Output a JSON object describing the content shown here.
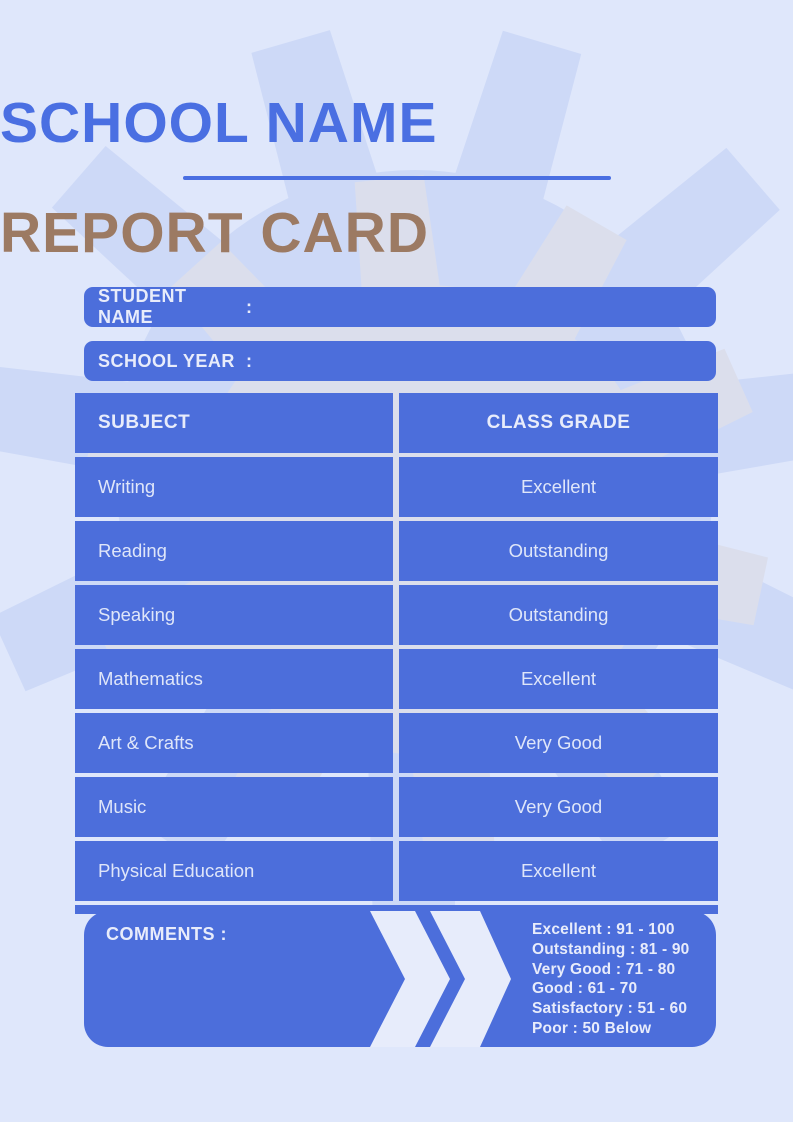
{
  "page": {
    "school_name": "SCHOOL NAME",
    "report_title": "REPORT CARD"
  },
  "fields": {
    "student": {
      "label": "STUDENT NAME",
      "colon": ":",
      "value": ""
    },
    "year": {
      "label": "SCHOOL YEAR",
      "colon": ":",
      "value": ""
    }
  },
  "table": {
    "headers": {
      "subject": "SUBJECT",
      "grade": "CLASS GRADE"
    },
    "rows": [
      {
        "subject": "Writing",
        "grade": "Excellent"
      },
      {
        "subject": "Reading",
        "grade": "Outstanding"
      },
      {
        "subject": "Speaking",
        "grade": "Outstanding"
      },
      {
        "subject": "Mathematics",
        "grade": "Excellent"
      },
      {
        "subject": "Art & Crafts",
        "grade": "Very Good"
      },
      {
        "subject": "Music",
        "grade": "Very Good"
      },
      {
        "subject": "Physical Education",
        "grade": "Excellent"
      }
    ]
  },
  "comments": {
    "label": "COMMENTS :",
    "value": "",
    "legend": [
      "Excellent : 91 - 100",
      "Outstanding : 81 - 90",
      "Very Good : 71 - 80",
      "Good : 61 - 70",
      "Satisfactory : 51 - 60",
      "Poor : 50 Below"
    ]
  },
  "colors": {
    "primary_blue": "#4c6edb",
    "title_blue": "#4a6fe2",
    "title_brown": "#9c7a63",
    "background": "#dfe7fb",
    "watermark_blue": "#cdd9f7",
    "watermark_gray": "#dbdeec",
    "light_text": "#e8ecfb"
  }
}
